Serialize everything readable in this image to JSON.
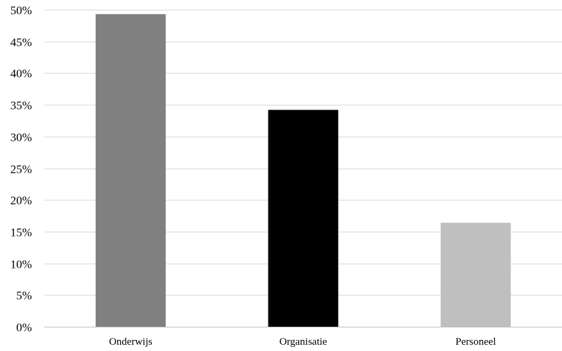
{
  "chart_data": {
    "type": "bar",
    "categories": [
      "Onderwijs",
      "Organisatie",
      "Personeel"
    ],
    "values": [
      49.3,
      34.2,
      16.4
    ],
    "bar_colors": [
      "#808080",
      "#000000",
      "#bfbfbf"
    ],
    "ylim": [
      0,
      50
    ],
    "y_ticks": [
      0,
      5,
      10,
      15,
      20,
      25,
      30,
      35,
      40,
      45,
      50
    ],
    "y_tick_format": "percent",
    "y_tick_labels": [
      "0%",
      "5%",
      "10%",
      "15%",
      "20%",
      "25%",
      "30%",
      "35%",
      "40%",
      "45%",
      "50%"
    ],
    "gridlines": true,
    "grid_color": "#d9d9d9",
    "legend": false,
    "title": "",
    "xlabel": "",
    "ylabel": ""
  }
}
